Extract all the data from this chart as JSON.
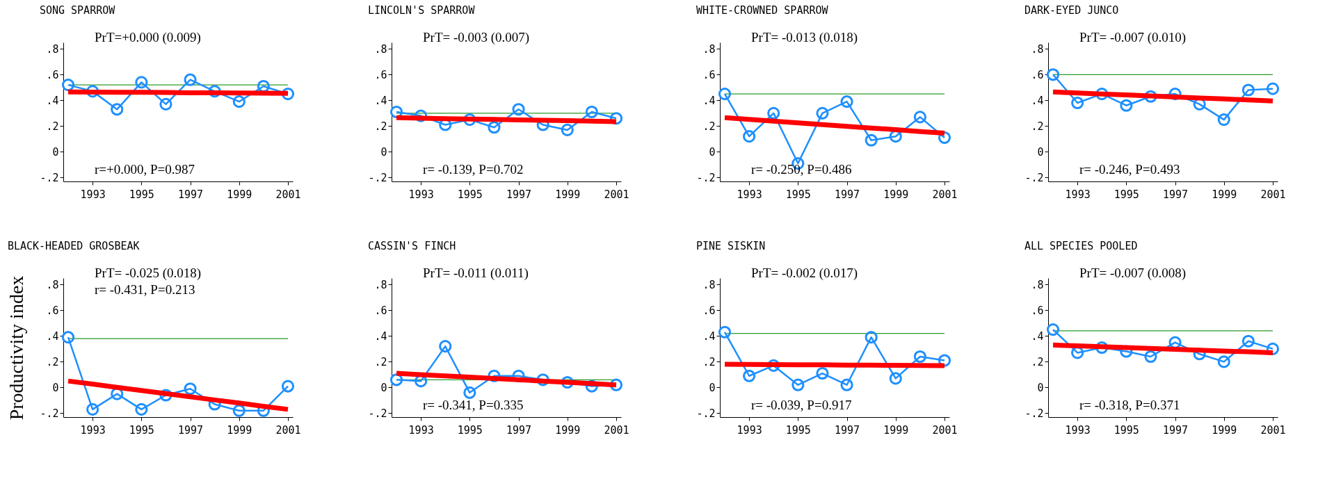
{
  "chart_data": [
    {
      "type": "line",
      "title": "SONG SPARROW",
      "x": [
        1992,
        1993,
        1994,
        1995,
        1996,
        1997,
        1998,
        1999,
        2000,
        2001
      ],
      "xlim": [
        1991.8,
        2001.2
      ],
      "xticks": [
        1993,
        1995,
        1997,
        1999,
        2001
      ],
      "ylim": [
        -0.23,
        0.85
      ],
      "yticks": [
        {
          "value": -0.2,
          "label": "-.2"
        },
        {
          "value": 0,
          "label": "0"
        },
        {
          "value": 0.2,
          "label": ".2"
        },
        {
          "value": 0.4,
          "label": ".4"
        },
        {
          "value": 0.6,
          "label": ".6"
        },
        {
          "value": 0.8,
          "label": ".8"
        }
      ],
      "grid": false,
      "series": [
        {
          "color": "#1e8fff",
          "marker": "circle",
          "values": [
            0.52,
            0.47,
            0.33,
            0.54,
            0.37,
            0.56,
            0.47,
            0.39,
            0.51,
            0.45
          ]
        },
        {
          "color": "#ff0000",
          "marker": "none",
          "values": [
            0.465,
            0.464,
            0.463,
            0.462,
            0.461,
            0.459,
            0.458,
            0.457,
            0.456,
            0.455
          ]
        }
      ],
      "ref_lines": [
        {
          "axis": "y",
          "value": 0.52,
          "color": "#2a9a2a"
        }
      ],
      "annotations": [
        "PrT=+0.000 (0.009)",
        "r=+0.000, P=0.987"
      ]
    },
    {
      "type": "line",
      "title": "LINCOLN'S SPARROW",
      "x": [
        1992,
        1993,
        1994,
        1995,
        1996,
        1997,
        1998,
        1999,
        2000,
        2001
      ],
      "xlim": [
        1991.8,
        2001.2
      ],
      "xticks": [
        1993,
        1995,
        1997,
        1999,
        2001
      ],
      "ylim": [
        -0.23,
        0.85
      ],
      "yticks": [
        {
          "value": -0.2,
          "label": "-.2"
        },
        {
          "value": 0,
          "label": "0"
        },
        {
          "value": 0.2,
          "label": ".2"
        },
        {
          "value": 0.4,
          "label": ".4"
        },
        {
          "value": 0.6,
          "label": ".6"
        },
        {
          "value": 0.8,
          "label": ".8"
        }
      ],
      "grid": false,
      "series": [
        {
          "color": "#1e8fff",
          "marker": "circle",
          "values": [
            0.31,
            0.28,
            0.21,
            0.25,
            0.19,
            0.33,
            0.21,
            0.17,
            0.31,
            0.26
          ]
        },
        {
          "color": "#ff0000",
          "marker": "none",
          "values": [
            0.265,
            0.262,
            0.258,
            0.255,
            0.252,
            0.248,
            0.245,
            0.242,
            0.238,
            0.235
          ]
        }
      ],
      "ref_lines": [
        {
          "axis": "y",
          "value": 0.3,
          "color": "#2a9a2a"
        }
      ],
      "annotations": [
        "PrT= -0.003 (0.007)",
        "r= -0.139, P=0.702"
      ]
    },
    {
      "type": "line",
      "title": "WHITE-CROWNED SPARROW",
      "x": [
        1992,
        1993,
        1994,
        1995,
        1996,
        1997,
        1998,
        1999,
        2000,
        2001
      ],
      "xlim": [
        1991.8,
        2001.2
      ],
      "xticks": [
        1993,
        1995,
        1997,
        1999,
        2001
      ],
      "ylim": [
        -0.23,
        0.85
      ],
      "yticks": [
        {
          "value": -0.2,
          "label": "-.2"
        },
        {
          "value": 0,
          "label": "0"
        },
        {
          "value": 0.2,
          "label": ".2"
        },
        {
          "value": 0.4,
          "label": ".4"
        },
        {
          "value": 0.6,
          "label": ".6"
        },
        {
          "value": 0.8,
          "label": ".8"
        }
      ],
      "grid": false,
      "series": [
        {
          "color": "#1e8fff",
          "marker": "circle",
          "values": [
            0.45,
            0.12,
            0.3,
            -0.09,
            0.3,
            0.39,
            0.09,
            0.12,
            0.27,
            0.11
          ]
        },
        {
          "color": "#ff0000",
          "marker": "none",
          "values": [
            0.265,
            0.252,
            0.238,
            0.225,
            0.212,
            0.198,
            0.185,
            0.172,
            0.158,
            0.145
          ]
        }
      ],
      "ref_lines": [
        {
          "axis": "y",
          "value": 0.45,
          "color": "#2a9a2a"
        }
      ],
      "annotations": [
        "PrT= -0.013 (0.018)",
        "r= -0.250, P=0.486"
      ]
    },
    {
      "type": "line",
      "title": "DARK-EYED JUNCO",
      "x": [
        1992,
        1993,
        1994,
        1995,
        1996,
        1997,
        1998,
        1999,
        2000,
        2001
      ],
      "xlim": [
        1991.8,
        2001.2
      ],
      "xticks": [
        1993,
        1995,
        1997,
        1999,
        2001
      ],
      "ylim": [
        -0.23,
        0.85
      ],
      "yticks": [
        {
          "value": -0.2,
          "label": "-.2"
        },
        {
          "value": 0,
          "label": "0"
        },
        {
          "value": 0.2,
          "label": ".2"
        },
        {
          "value": 0.4,
          "label": ".4"
        },
        {
          "value": 0.6,
          "label": ".6"
        },
        {
          "value": 0.8,
          "label": ".8"
        }
      ],
      "grid": false,
      "series": [
        {
          "color": "#1e8fff",
          "marker": "circle",
          "values": [
            0.6,
            0.38,
            0.45,
            0.36,
            0.43,
            0.45,
            0.37,
            0.25,
            0.48,
            0.49
          ]
        },
        {
          "color": "#ff0000",
          "marker": "none",
          "values": [
            0.465,
            0.457,
            0.449,
            0.442,
            0.434,
            0.426,
            0.418,
            0.411,
            0.403,
            0.395
          ]
        }
      ],
      "ref_lines": [
        {
          "axis": "y",
          "value": 0.6,
          "color": "#2a9a2a"
        }
      ],
      "annotations": [
        "PrT= -0.007 (0.010)",
        "r= -0.246, P=0.493"
      ]
    },
    {
      "type": "line",
      "title": "BLACK-HEADED GROSBEAK",
      "ylabel": "Productivity index",
      "x": [
        1992,
        1993,
        1994,
        1995,
        1996,
        1997,
        1998,
        1999,
        2000,
        2001
      ],
      "xlim": [
        1991.8,
        2001.2
      ],
      "xticks": [
        1993,
        1995,
        1997,
        1999,
        2001
      ],
      "ylim": [
        -0.23,
        0.85
      ],
      "yticks": [
        {
          "value": -0.2,
          "label": "-.2"
        },
        {
          "value": 0,
          "label": "0"
        },
        {
          "value": 0.2,
          "label": ".2"
        },
        {
          "value": 0.4,
          "label": ".4"
        },
        {
          "value": 0.6,
          "label": ".6"
        },
        {
          "value": 0.8,
          "label": ".8"
        }
      ],
      "grid": false,
      "series": [
        {
          "color": "#1e8fff",
          "marker": "circle",
          "values": [
            0.39,
            -0.17,
            -0.05,
            -0.17,
            -0.06,
            -0.01,
            -0.13,
            -0.18,
            -0.18,
            0.01
          ]
        },
        {
          "color": "#ff0000",
          "marker": "none",
          "values": [
            0.05,
            0.026,
            0.001,
            -0.023,
            -0.048,
            -0.072,
            -0.097,
            -0.121,
            -0.146,
            -0.17
          ]
        }
      ],
      "ref_lines": [
        {
          "axis": "y",
          "value": 0.38,
          "color": "#2a9a2a"
        }
      ],
      "annotations": [
        "PrT= -0.025 (0.018)\nr= -0.431, P=0.213"
      ]
    },
    {
      "type": "line",
      "title": "CASSIN'S FINCH",
      "x": [
        1992,
        1993,
        1994,
        1995,
        1996,
        1997,
        1998,
        1999,
        2000,
        2001
      ],
      "xlim": [
        1991.8,
        2001.2
      ],
      "xticks": [
        1993,
        1995,
        1997,
        1999,
        2001
      ],
      "ylim": [
        -0.23,
        0.85
      ],
      "yticks": [
        {
          "value": -0.2,
          "label": "-.2"
        },
        {
          "value": 0,
          "label": "0"
        },
        {
          "value": 0.2,
          "label": ".2"
        },
        {
          "value": 0.4,
          "label": ".4"
        },
        {
          "value": 0.6,
          "label": ".6"
        },
        {
          "value": 0.8,
          "label": ".8"
        }
      ],
      "grid": false,
      "series": [
        {
          "color": "#1e8fff",
          "marker": "circle",
          "values": [
            0.06,
            0.05,
            0.32,
            -0.04,
            0.09,
            0.09,
            0.06,
            0.04,
            0.01,
            0.02
          ]
        },
        {
          "color": "#ff0000",
          "marker": "none",
          "values": [
            0.11,
            0.1,
            0.09,
            0.08,
            0.07,
            0.06,
            0.05,
            0.04,
            0.03,
            0.02
          ]
        }
      ],
      "ref_lines": [
        {
          "axis": "y",
          "value": 0.06,
          "color": "#2a9a2a"
        }
      ],
      "annotations": [
        "PrT= -0.011 (0.011)",
        "r= -0.341, P=0.335"
      ]
    },
    {
      "type": "line",
      "title": "PINE SISKIN",
      "x": [
        1992,
        1993,
        1994,
        1995,
        1996,
        1997,
        1998,
        1999,
        2000,
        2001
      ],
      "xlim": [
        1991.8,
        2001.2
      ],
      "xticks": [
        1993,
        1995,
        1997,
        1999,
        2001
      ],
      "ylim": [
        -0.23,
        0.85
      ],
      "yticks": [
        {
          "value": -0.2,
          "label": "-.2"
        },
        {
          "value": 0,
          "label": "0"
        },
        {
          "value": 0.2,
          "label": ".2"
        },
        {
          "value": 0.4,
          "label": ".4"
        },
        {
          "value": 0.6,
          "label": ".6"
        },
        {
          "value": 0.8,
          "label": ".8"
        }
      ],
      "grid": false,
      "series": [
        {
          "color": "#1e8fff",
          "marker": "circle",
          "values": [
            0.43,
            0.09,
            0.17,
            0.02,
            0.11,
            0.02,
            0.39,
            0.07,
            0.24,
            0.21
          ]
        },
        {
          "color": "#ff0000",
          "marker": "none",
          "values": [
            0.18,
            0.179,
            0.178,
            0.177,
            0.176,
            0.174,
            0.173,
            0.172,
            0.171,
            0.17
          ]
        }
      ],
      "ref_lines": [
        {
          "axis": "y",
          "value": 0.42,
          "color": "#2a9a2a"
        }
      ],
      "annotations": [
        "PrT= -0.002 (0.017)",
        "r= -0.039, P=0.917"
      ]
    },
    {
      "type": "line",
      "title": "ALL SPECIES POOLED",
      "x": [
        1992,
        1993,
        1994,
        1995,
        1996,
        1997,
        1998,
        1999,
        2000,
        2001
      ],
      "xlim": [
        1991.8,
        2001.2
      ],
      "xticks": [
        1993,
        1995,
        1997,
        1999,
        2001
      ],
      "ylim": [
        -0.23,
        0.85
      ],
      "yticks": [
        {
          "value": -0.2,
          "label": "-.2"
        },
        {
          "value": 0,
          "label": "0"
        },
        {
          "value": 0.2,
          "label": ".2"
        },
        {
          "value": 0.4,
          "label": ".4"
        },
        {
          "value": 0.6,
          "label": ".6"
        },
        {
          "value": 0.8,
          "label": ".8"
        }
      ],
      "grid": false,
      "series": [
        {
          "color": "#1e8fff",
          "marker": "circle",
          "values": [
            0.45,
            0.27,
            0.31,
            0.28,
            0.24,
            0.35,
            0.26,
            0.2,
            0.36,
            0.3
          ]
        },
        {
          "color": "#ff0000",
          "marker": "none",
          "values": [
            0.33,
            0.323,
            0.317,
            0.31,
            0.303,
            0.297,
            0.29,
            0.283,
            0.277,
            0.27
          ]
        }
      ],
      "ref_lines": [
        {
          "axis": "y",
          "value": 0.44,
          "color": "#2a9a2a"
        }
      ],
      "annotations": [
        "PrT= -0.007 (0.008)",
        "r= -0.318, P=0.371"
      ]
    }
  ]
}
